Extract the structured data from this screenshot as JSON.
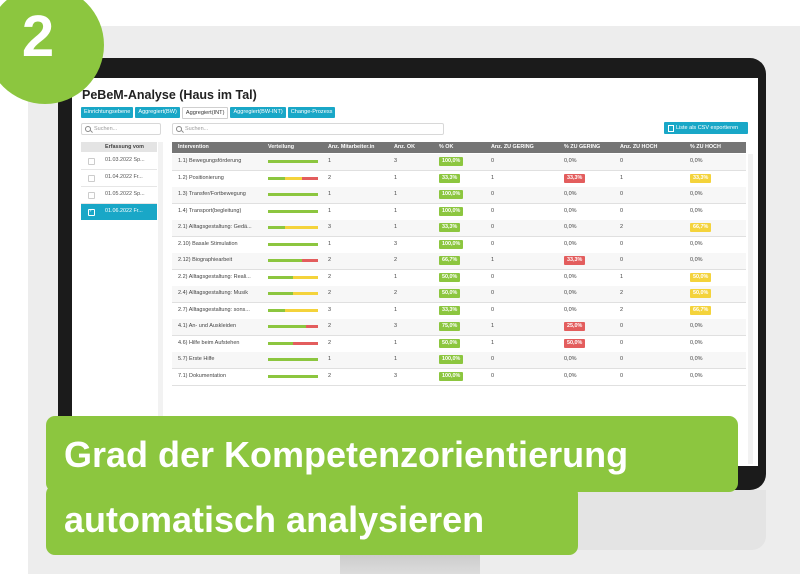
{
  "badge": {
    "number": "2"
  },
  "app": {
    "title": "PeBeM-Analyse (Haus im Tal)",
    "tabs": [
      {
        "label": "Einrichtungsebene",
        "active": false
      },
      {
        "label": "Aggregiert(BW)",
        "active": false
      },
      {
        "label": "Aggregiert(INT)",
        "active": true
      },
      {
        "label": "Aggregiert(BW-INT)",
        "active": false
      },
      {
        "label": "Change-Prozess",
        "active": false
      }
    ],
    "search_left": {
      "placeholder": "Suchen..."
    },
    "search_right": {
      "placeholder": "Suchen..."
    },
    "export_label": "Liste als CSV exportieren"
  },
  "left_panel": {
    "header": "Erfassung vom",
    "rows": [
      {
        "date": "01.03.2022 Sp...",
        "selected": false
      },
      {
        "date": "01.04.2022 Fr...",
        "selected": false
      },
      {
        "date": "01.05.2022 Sp...",
        "selected": false
      },
      {
        "date": "01.06.2022 Fr...",
        "selected": true
      }
    ]
  },
  "table": {
    "headers": [
      "Intervention",
      "Verteilung",
      "Anz. Mitarbeiter.in",
      "Anz. OK",
      "% OK",
      "Anz. ZU GERING",
      "% ZU GERING",
      "Anz. ZU HOCH",
      "% ZU HOCH"
    ],
    "rows": [
      {
        "intervention": "1.1) Bewegungsförderung",
        "dist": [
          100,
          0,
          0
        ],
        "mitarbeiter": "1",
        "anz_ok": "3",
        "pct_ok": "100,0%",
        "anz_gering": "0",
        "pct_gering": "0,0%",
        "anz_hoch": "0",
        "pct_hoch": "0,0%"
      },
      {
        "intervention": "1.2) Positionierung",
        "dist": [
          33,
          34,
          33
        ],
        "mitarbeiter": "2",
        "anz_ok": "1",
        "pct_ok": "33,3%",
        "anz_gering": "1",
        "pct_gering": "33,3%",
        "anz_hoch": "1",
        "pct_hoch": "33,3%"
      },
      {
        "intervention": "1.3) Transfer/Fortbewegung",
        "dist": [
          100,
          0,
          0
        ],
        "mitarbeiter": "1",
        "anz_ok": "1",
        "pct_ok": "100,0%",
        "anz_gering": "0",
        "pct_gering": "0,0%",
        "anz_hoch": "0",
        "pct_hoch": "0,0%"
      },
      {
        "intervention": "1.4) Transport(begleitung)",
        "dist": [
          100,
          0,
          0
        ],
        "mitarbeiter": "1",
        "anz_ok": "1",
        "pct_ok": "100,0%",
        "anz_gering": "0",
        "pct_gering": "0,0%",
        "anz_hoch": "0",
        "pct_hoch": "0,0%"
      },
      {
        "intervention": "2.1) Alltagsgestaltung: Gedä...",
        "dist": [
          33,
          67,
          0
        ],
        "mitarbeiter": "3",
        "anz_ok": "1",
        "pct_ok": "33,3%",
        "anz_gering": "0",
        "pct_gering": "0,0%",
        "anz_hoch": "2",
        "pct_hoch": "66,7%"
      },
      {
        "intervention": "2.10) Basale Stimulation",
        "dist": [
          100,
          0,
          0
        ],
        "mitarbeiter": "1",
        "anz_ok": "3",
        "pct_ok": "100,0%",
        "anz_gering": "0",
        "pct_gering": "0,0%",
        "anz_hoch": "0",
        "pct_hoch": "0,0%"
      },
      {
        "intervention": "2.12) Biographiearbeit",
        "dist": [
          67,
          0,
          33
        ],
        "mitarbeiter": "2",
        "anz_ok": "2",
        "pct_ok": "66,7%",
        "anz_gering": "1",
        "pct_gering": "33,3%",
        "anz_hoch": "0",
        "pct_hoch": "0,0%"
      },
      {
        "intervention": "2.2) Alltagsgestaltung: Reali...",
        "dist": [
          50,
          50,
          0
        ],
        "mitarbeiter": "2",
        "anz_ok": "1",
        "pct_ok": "50,0%",
        "anz_gering": "0",
        "pct_gering": "0,0%",
        "anz_hoch": "1",
        "pct_hoch": "50,0%"
      },
      {
        "intervention": "2.4) Alltagsgestaltung: Musik",
        "dist": [
          50,
          50,
          0
        ],
        "mitarbeiter": "2",
        "anz_ok": "2",
        "pct_ok": "50,0%",
        "anz_gering": "0",
        "pct_gering": "0,0%",
        "anz_hoch": "2",
        "pct_hoch": "50,0%"
      },
      {
        "intervention": "2.7) Alltagsgestaltung: sons...",
        "dist": [
          33,
          67,
          0
        ],
        "mitarbeiter": "3",
        "anz_ok": "1",
        "pct_ok": "33,3%",
        "anz_gering": "0",
        "pct_gering": "0,0%",
        "anz_hoch": "2",
        "pct_hoch": "66,7%"
      },
      {
        "intervention": "4.1) An- und Auskleiden",
        "dist": [
          75,
          0,
          25
        ],
        "mitarbeiter": "2",
        "anz_ok": "3",
        "pct_ok": "75,0%",
        "anz_gering": "1",
        "pct_gering": "25,0%",
        "anz_hoch": "0",
        "pct_hoch": "0,0%"
      },
      {
        "intervention": "4.6) Hilfe beim Aufstehen",
        "dist": [
          50,
          0,
          50
        ],
        "mitarbeiter": "2",
        "anz_ok": "1",
        "pct_ok": "50,0%",
        "anz_gering": "1",
        "pct_gering": "50,0%",
        "anz_hoch": "0",
        "pct_hoch": "0,0%"
      },
      {
        "intervention": "5.7) Erste Hilfe",
        "dist": [
          100,
          0,
          0
        ],
        "mitarbeiter": "1",
        "anz_ok": "1",
        "pct_ok": "100,0%",
        "anz_gering": "0",
        "pct_gering": "0,0%",
        "anz_hoch": "0",
        "pct_hoch": "0,0%"
      },
      {
        "intervention": "7.1) Dokumentation",
        "dist": [
          100,
          0,
          0
        ],
        "mitarbeiter": "2",
        "anz_ok": "3",
        "pct_ok": "100,0%",
        "anz_gering": "0",
        "pct_gering": "0,0%",
        "anz_hoch": "0",
        "pct_hoch": "0,0%"
      }
    ]
  },
  "colors": {
    "ok": "#8cc63f",
    "gering": "#e35d5d",
    "hoch": "#f4d33b",
    "accent": "#19a7c7"
  },
  "banner": {
    "line1": "Grad der Kompetenzorientierung",
    "line2": "automatisch analysieren"
  }
}
